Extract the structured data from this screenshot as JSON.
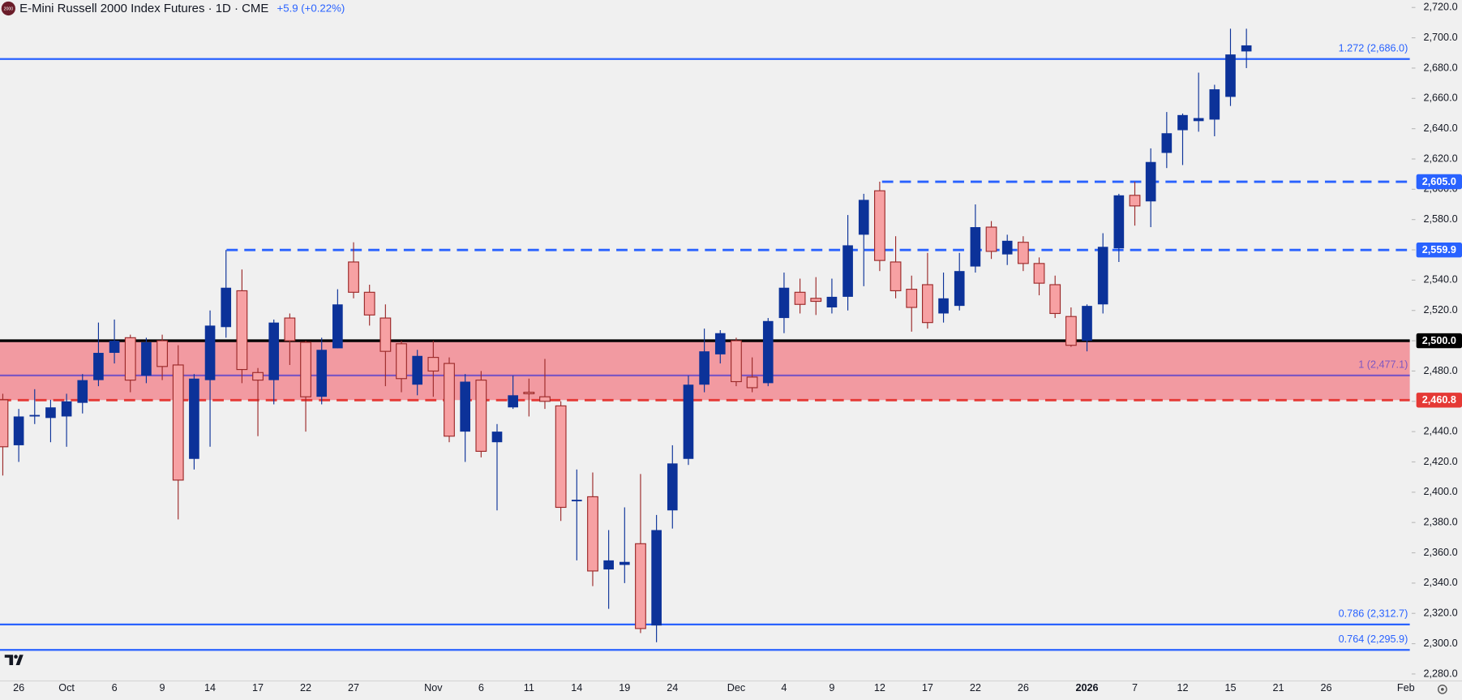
{
  "chart_data": {
    "type": "candlestick",
    "title": "E-Mini Russell 2000 Index Futures · 1D · CME",
    "logo_text": "2000",
    "change": "+5.9 (+0.22%)",
    "up_color": "#0c3299",
    "down_color": "#f7a1a3",
    "down_outline": "#9c2a2a",
    "categories": [
      null,
      "26",
      null,
      null,
      "Oct",
      null,
      null,
      "6",
      null,
      null,
      "9",
      null,
      null,
      "14",
      null,
      null,
      "17",
      null,
      null,
      "22",
      null,
      null,
      "27",
      null,
      null,
      null,
      null,
      "Nov",
      null,
      null,
      "6",
      null,
      null,
      "11",
      null,
      null,
      "14",
      null,
      null,
      "19",
      null,
      null,
      "24",
      null,
      null,
      null,
      "Dec",
      null,
      null,
      "4",
      null,
      null,
      "9",
      null,
      null,
      "12",
      null,
      null,
      "17",
      null,
      null,
      "22",
      null,
      null,
      "26",
      null,
      null,
      null,
      "2026",
      null,
      null,
      "7",
      null,
      null,
      "12",
      null,
      null,
      "15",
      null,
      null,
      "21",
      null,
      null,
      "26",
      null,
      null,
      null,
      null,
      "Feb"
    ],
    "open": [
      2461,
      2431,
      2450,
      2449,
      2450,
      2459,
      2474,
      2492,
      2502,
      2477,
      2500,
      2484,
      2422,
      2474,
      2509,
      2533,
      2479,
      2474,
      2515,
      2499,
      2463,
      2495,
      2552,
      2532,
      2515,
      2498,
      2471,
      2489,
      2485,
      2440,
      2474,
      2433,
      2456,
      2466,
      2463,
      2457,
      2394,
      2397,
      2349,
      2352,
      2366,
      2312,
      2388,
      2422,
      2471,
      2491,
      2500,
      2476,
      2472,
      2515,
      2532,
      2528,
      2522,
      2529,
      2570,
      2599,
      2552,
      2534,
      2537,
      2518,
      2523,
      2549,
      2575,
      2557,
      2565,
      2551,
      2537,
      2516,
      2500,
      2524,
      2561,
      2596,
      2592,
      2624,
      2639,
      2645,
      2646,
      2661,
      2691,
      null,
      null,
      null,
      null,
      null,
      null,
      null,
      null,
      null,
      null
    ],
    "high": [
      2465,
      2455,
      2468,
      2461,
      2465,
      2478,
      2512,
      2514,
      2504,
      2502,
      2504,
      2497,
      2478,
      2520,
      2559.9,
      2547,
      2482,
      2514,
      2518,
      2500,
      2502,
      2534,
      2565,
      2537,
      2524,
      2500,
      2494,
      2500,
      2489,
      2478,
      2480,
      2445,
      2477,
      2475,
      2488,
      2460,
      2415,
      2413,
      2375,
      2390,
      2412,
      2385,
      2431,
      2477,
      2508,
      2507,
      2502,
      2489,
      2515,
      2545,
      2541,
      2542,
      2541,
      2583,
      2597,
      2605,
      2569,
      2543,
      2558,
      2545,
      2558,
      2590,
      2579,
      2570,
      2569,
      2555,
      2543,
      2522,
      2524,
      2571,
      2597,
      2605,
      2627,
      2651,
      2650,
      2677,
      2669,
      2706,
      2706,
      null,
      null,
      null,
      null,
      null,
      null,
      null,
      null,
      null,
      null
    ],
    "low": [
      2411,
      2420,
      2445,
      2433,
      2430,
      2452,
      2470,
      2485,
      2466,
      2472,
      2474,
      2382,
      2415,
      2430,
      2502,
      2472,
      2437,
      2458,
      2484,
      2440,
      2458,
      2495,
      2528,
      2510,
      2470,
      2466,
      2464,
      2463,
      2433,
      2420,
      2423,
      2388,
      2455,
      2450,
      2455,
      2381,
      2355,
      2338,
      2323,
      2340,
      2307,
      2301,
      2376,
      2418,
      2466,
      2485,
      2470,
      2466,
      2470,
      2505,
      2518,
      2517,
      2518,
      2520,
      2536,
      2546,
      2528,
      2506,
      2508,
      2512,
      2520,
      2545,
      2554,
      2550,
      2546,
      2530,
      2515,
      2496,
      2493,
      2518,
      2552,
      2576,
      2575,
      2614,
      2616,
      2638,
      2635,
      2655,
      2680,
      null,
      null,
      null,
      null,
      null,
      null,
      null,
      null,
      null,
      null
    ],
    "close": [
      2430,
      2450,
      2451,
      2456,
      2460,
      2474,
      2492,
      2500,
      2474,
      2499,
      2483,
      2408,
      2475,
      2510,
      2535,
      2481,
      2474,
      2512,
      2500,
      2463,
      2494,
      2524,
      2532,
      2517,
      2493,
      2475,
      2490,
      2480,
      2437,
      2473,
      2427,
      2440,
      2464,
      2465,
      2460,
      2390,
      2395,
      2348,
      2355,
      2354,
      2310,
      2375,
      2419,
      2471,
      2493,
      2505,
      2473,
      2469,
      2513,
      2535,
      2524,
      2526,
      2529,
      2563,
      2593,
      2553,
      2533,
      2522,
      2512,
      2528,
      2546,
      2575,
      2559,
      2566,
      2551,
      2538,
      2518,
      2497,
      2523,
      2562,
      2596,
      2589,
      2618,
      2637,
      2649,
      2647,
      2666,
      2689,
      2695,
      null,
      null,
      null,
      null,
      null,
      null,
      null,
      null,
      null,
      null
    ],
    "zone": {
      "from": 2460.8,
      "to": 2500,
      "color": "#f28b93"
    },
    "levels": [
      {
        "value": 2686,
        "label": "1.272 (2,686.0)",
        "color": "#2962ff",
        "style": "solid"
      },
      {
        "value": 2605,
        "tag": "2,605.0",
        "color": "#2962ff",
        "style": "dashed"
      },
      {
        "value": 2559.9,
        "tag": "2,559.9",
        "color": "#2962ff",
        "style": "dashed"
      },
      {
        "value": 2500,
        "tag": "2,500.0",
        "color": "#000000",
        "style": "thick"
      },
      {
        "value": 2477.1,
        "label": "1 (2,477.1)",
        "color": "#7e57c2",
        "style": "solid"
      },
      {
        "value": 2460.8,
        "tag": "2,460.8",
        "color": "#e53935",
        "style": "dashed"
      },
      {
        "value": 2312.7,
        "label": "0.786 (2,312.7)",
        "color": "#2962ff",
        "style": "solid"
      },
      {
        "value": 2295.9,
        "label": "0.764 (2,295.9)",
        "color": "#2962ff",
        "style": "solid"
      }
    ],
    "ylim": [
      2275.4,
      2724.9
    ],
    "yticks": [
      {
        "value": 2280,
        "label": "2,280.0"
      },
      {
        "value": 2300,
        "label": "2,300.0"
      },
      {
        "value": 2320,
        "label": "2,320.0"
      },
      {
        "value": 2340,
        "label": "2,340.0"
      },
      {
        "value": 2360,
        "label": "2,360.0"
      },
      {
        "value": 2380,
        "label": "2,380.0"
      },
      {
        "value": 2400,
        "label": "2,400.0"
      },
      {
        "value": 2420,
        "label": "2,420.0"
      },
      {
        "value": 2440,
        "label": "2,440.0"
      },
      {
        "value": 2460,
        "label": "2,460.0"
      },
      {
        "value": 2480,
        "label": "2,480.0"
      },
      {
        "value": 2500,
        "label": "2,500.0"
      },
      {
        "value": 2520,
        "label": "2,520.0"
      },
      {
        "value": 2540,
        "label": "2,540.0"
      },
      {
        "value": 2560,
        "label": "2,560.0"
      },
      {
        "value": 2580,
        "label": "2,580.0"
      },
      {
        "value": 2600,
        "label": "2,600.0"
      },
      {
        "value": 2620,
        "label": "2,620.0"
      },
      {
        "value": 2640,
        "label": "2,640.0"
      },
      {
        "value": 2660,
        "label": "2,660.0"
      },
      {
        "value": 2680,
        "label": "2,680.0"
      },
      {
        "value": 2700,
        "label": "2,700.0"
      },
      {
        "value": 2720,
        "label": "2,720.0"
      }
    ]
  }
}
